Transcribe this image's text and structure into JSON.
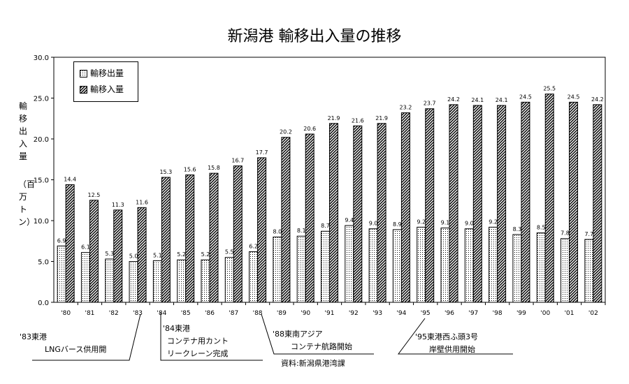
{
  "chart_data": {
    "type": "bar",
    "title": "新潟港 輸移出入量の推移",
    "ylabel": "輸移出入量",
    "yunit": "（百万トン）",
    "categories": [
      "'80",
      "'81",
      "'82",
      "'83",
      "'84",
      "'85",
      "'86",
      "'87",
      "'88",
      "'89",
      "'90",
      "'91",
      "'92",
      "'93",
      "'94",
      "'95",
      "'96",
      "'97",
      "'98",
      "'99",
      "'00",
      "'01",
      "'02"
    ],
    "series": [
      {
        "name": "輸移出量",
        "pattern": "dots",
        "values": [
          6.9,
          6.1,
          5.3,
          5.0,
          5.1,
          5.2,
          5.2,
          5.5,
          6.2,
          8.0,
          8.1,
          8.7,
          9.4,
          9.0,
          8.9,
          9.2,
          9.1,
          9.0,
          9.2,
          8.3,
          8.5,
          7.8,
          7.7
        ]
      },
      {
        "name": "輸移入量",
        "pattern": "hatch",
        "values": [
          14.4,
          12.5,
          11.3,
          11.6,
          15.3,
          15.6,
          15.8,
          16.7,
          17.7,
          20.2,
          20.6,
          21.9,
          21.6,
          21.9,
          23.2,
          23.7,
          24.2,
          24.1,
          24.1,
          24.5,
          25.5,
          24.5,
          24.2
        ]
      }
    ],
    "ylim": [
      0,
      30
    ],
    "yticks": [
      "0.0",
      "5.0",
      "10.0",
      "15.0",
      "20.0",
      "25.0",
      "30.0"
    ],
    "grid": false,
    "legend_position": "top-left",
    "annotations": [
      {
        "year": "'83",
        "lines": [
          "'83東港",
          "LNGバース供用開"
        ]
      },
      {
        "year": "'84",
        "lines": [
          "'84東港",
          "コンテナ用カント",
          "リークレーン完成"
        ]
      },
      {
        "year": "'88",
        "lines": [
          "'88東南アジア",
          "コンテナ航路開始"
        ]
      },
      {
        "year": "'95",
        "lines": [
          "'95東港西ふ頭3号",
          "岸壁供用開始"
        ]
      }
    ],
    "source": "資料:新潟県港湾課"
  }
}
